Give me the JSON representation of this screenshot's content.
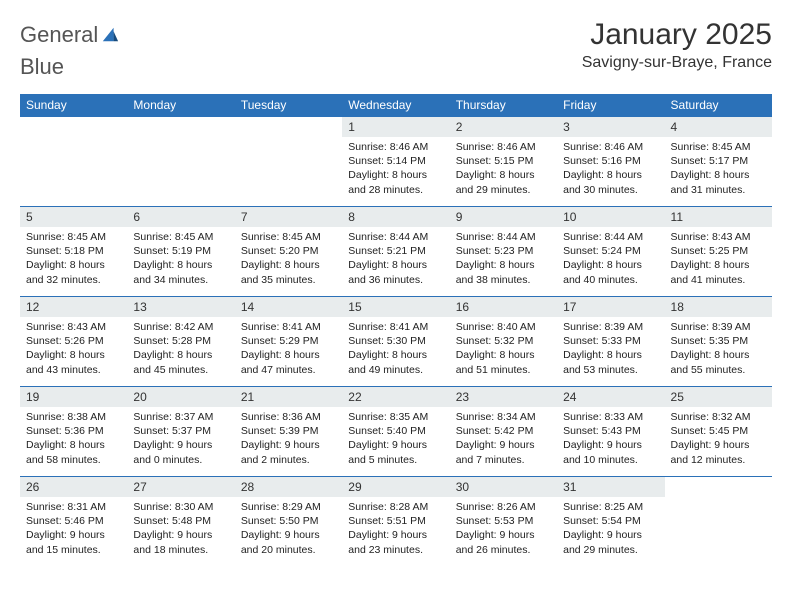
{
  "brand": {
    "word1": "General",
    "word2": "Blue"
  },
  "title": "January 2025",
  "location": "Savigny-sur-Braye, France",
  "colors": {
    "header_bg": "#2b71b8",
    "header_text": "#ffffff",
    "daynum_bg": "#e8eced",
    "cell_border": "#2b71b8",
    "page_bg": "#ffffff",
    "body_text": "#222222",
    "logo_gray": "#555555",
    "logo_blue": "#2b71b8"
  },
  "typography": {
    "title_fontsize": 30,
    "location_fontsize": 16,
    "dayheader_fontsize": 12,
    "daynum_fontsize": 12,
    "body_fontsize": 10.5
  },
  "day_headers": [
    "Sunday",
    "Monday",
    "Tuesday",
    "Wednesday",
    "Thursday",
    "Friday",
    "Saturday"
  ],
  "weeks": [
    [
      {
        "n": "",
        "lines": []
      },
      {
        "n": "",
        "lines": []
      },
      {
        "n": "",
        "lines": []
      },
      {
        "n": "1",
        "lines": [
          "Sunrise: 8:46 AM",
          "Sunset: 5:14 PM",
          "Daylight: 8 hours",
          "and 28 minutes."
        ]
      },
      {
        "n": "2",
        "lines": [
          "Sunrise: 8:46 AM",
          "Sunset: 5:15 PM",
          "Daylight: 8 hours",
          "and 29 minutes."
        ]
      },
      {
        "n": "3",
        "lines": [
          "Sunrise: 8:46 AM",
          "Sunset: 5:16 PM",
          "Daylight: 8 hours",
          "and 30 minutes."
        ]
      },
      {
        "n": "4",
        "lines": [
          "Sunrise: 8:45 AM",
          "Sunset: 5:17 PM",
          "Daylight: 8 hours",
          "and 31 minutes."
        ]
      }
    ],
    [
      {
        "n": "5",
        "lines": [
          "Sunrise: 8:45 AM",
          "Sunset: 5:18 PM",
          "Daylight: 8 hours",
          "and 32 minutes."
        ]
      },
      {
        "n": "6",
        "lines": [
          "Sunrise: 8:45 AM",
          "Sunset: 5:19 PM",
          "Daylight: 8 hours",
          "and 34 minutes."
        ]
      },
      {
        "n": "7",
        "lines": [
          "Sunrise: 8:45 AM",
          "Sunset: 5:20 PM",
          "Daylight: 8 hours",
          "and 35 minutes."
        ]
      },
      {
        "n": "8",
        "lines": [
          "Sunrise: 8:44 AM",
          "Sunset: 5:21 PM",
          "Daylight: 8 hours",
          "and 36 minutes."
        ]
      },
      {
        "n": "9",
        "lines": [
          "Sunrise: 8:44 AM",
          "Sunset: 5:23 PM",
          "Daylight: 8 hours",
          "and 38 minutes."
        ]
      },
      {
        "n": "10",
        "lines": [
          "Sunrise: 8:44 AM",
          "Sunset: 5:24 PM",
          "Daylight: 8 hours",
          "and 40 minutes."
        ]
      },
      {
        "n": "11",
        "lines": [
          "Sunrise: 8:43 AM",
          "Sunset: 5:25 PM",
          "Daylight: 8 hours",
          "and 41 minutes."
        ]
      }
    ],
    [
      {
        "n": "12",
        "lines": [
          "Sunrise: 8:43 AM",
          "Sunset: 5:26 PM",
          "Daylight: 8 hours",
          "and 43 minutes."
        ]
      },
      {
        "n": "13",
        "lines": [
          "Sunrise: 8:42 AM",
          "Sunset: 5:28 PM",
          "Daylight: 8 hours",
          "and 45 minutes."
        ]
      },
      {
        "n": "14",
        "lines": [
          "Sunrise: 8:41 AM",
          "Sunset: 5:29 PM",
          "Daylight: 8 hours",
          "and 47 minutes."
        ]
      },
      {
        "n": "15",
        "lines": [
          "Sunrise: 8:41 AM",
          "Sunset: 5:30 PM",
          "Daylight: 8 hours",
          "and 49 minutes."
        ]
      },
      {
        "n": "16",
        "lines": [
          "Sunrise: 8:40 AM",
          "Sunset: 5:32 PM",
          "Daylight: 8 hours",
          "and 51 minutes."
        ]
      },
      {
        "n": "17",
        "lines": [
          "Sunrise: 8:39 AM",
          "Sunset: 5:33 PM",
          "Daylight: 8 hours",
          "and 53 minutes."
        ]
      },
      {
        "n": "18",
        "lines": [
          "Sunrise: 8:39 AM",
          "Sunset: 5:35 PM",
          "Daylight: 8 hours",
          "and 55 minutes."
        ]
      }
    ],
    [
      {
        "n": "19",
        "lines": [
          "Sunrise: 8:38 AM",
          "Sunset: 5:36 PM",
          "Daylight: 8 hours",
          "and 58 minutes."
        ]
      },
      {
        "n": "20",
        "lines": [
          "Sunrise: 8:37 AM",
          "Sunset: 5:37 PM",
          "Daylight: 9 hours",
          "and 0 minutes."
        ]
      },
      {
        "n": "21",
        "lines": [
          "Sunrise: 8:36 AM",
          "Sunset: 5:39 PM",
          "Daylight: 9 hours",
          "and 2 minutes."
        ]
      },
      {
        "n": "22",
        "lines": [
          "Sunrise: 8:35 AM",
          "Sunset: 5:40 PM",
          "Daylight: 9 hours",
          "and 5 minutes."
        ]
      },
      {
        "n": "23",
        "lines": [
          "Sunrise: 8:34 AM",
          "Sunset: 5:42 PM",
          "Daylight: 9 hours",
          "and 7 minutes."
        ]
      },
      {
        "n": "24",
        "lines": [
          "Sunrise: 8:33 AM",
          "Sunset: 5:43 PM",
          "Daylight: 9 hours",
          "and 10 minutes."
        ]
      },
      {
        "n": "25",
        "lines": [
          "Sunrise: 8:32 AM",
          "Sunset: 5:45 PM",
          "Daylight: 9 hours",
          "and 12 minutes."
        ]
      }
    ],
    [
      {
        "n": "26",
        "lines": [
          "Sunrise: 8:31 AM",
          "Sunset: 5:46 PM",
          "Daylight: 9 hours",
          "and 15 minutes."
        ]
      },
      {
        "n": "27",
        "lines": [
          "Sunrise: 8:30 AM",
          "Sunset: 5:48 PM",
          "Daylight: 9 hours",
          "and 18 minutes."
        ]
      },
      {
        "n": "28",
        "lines": [
          "Sunrise: 8:29 AM",
          "Sunset: 5:50 PM",
          "Daylight: 9 hours",
          "and 20 minutes."
        ]
      },
      {
        "n": "29",
        "lines": [
          "Sunrise: 8:28 AM",
          "Sunset: 5:51 PM",
          "Daylight: 9 hours",
          "and 23 minutes."
        ]
      },
      {
        "n": "30",
        "lines": [
          "Sunrise: 8:26 AM",
          "Sunset: 5:53 PM",
          "Daylight: 9 hours",
          "and 26 minutes."
        ]
      },
      {
        "n": "31",
        "lines": [
          "Sunrise: 8:25 AM",
          "Sunset: 5:54 PM",
          "Daylight: 9 hours",
          "and 29 minutes."
        ]
      },
      {
        "n": "",
        "lines": []
      }
    ]
  ]
}
